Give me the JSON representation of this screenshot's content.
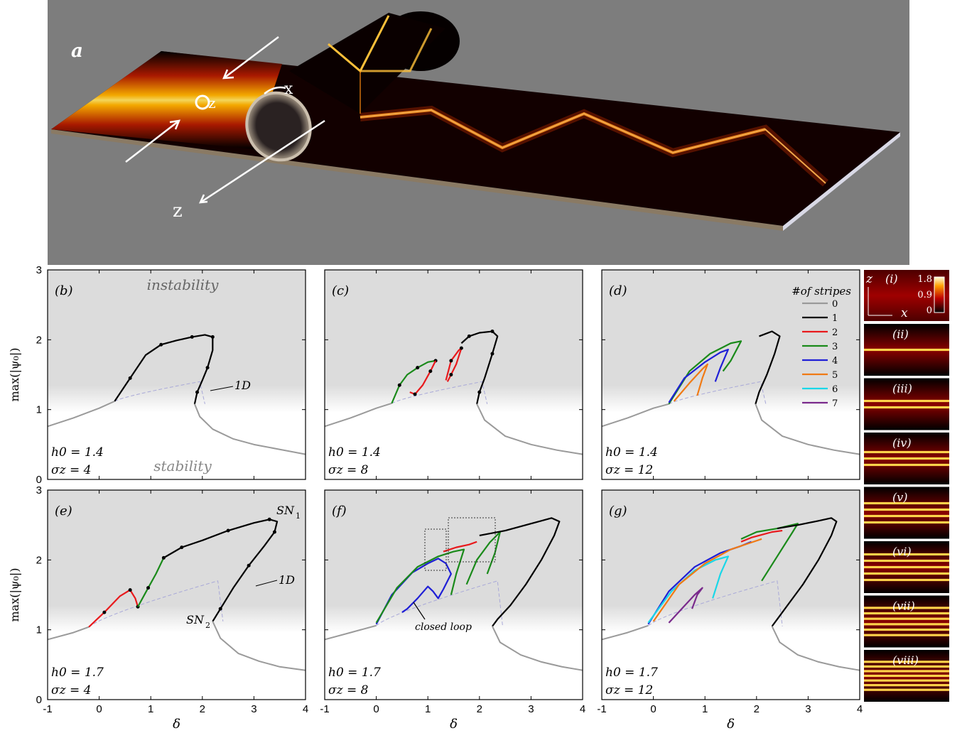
{
  "panel_a": {
    "label": "a",
    "axis_labels": [
      "z",
      "x",
      "z"
    ]
  },
  "figure": {
    "y_axis_label": "max(|ψ₀|)",
    "x_axis_label": "δ",
    "yticks": [
      "0",
      "1",
      "2",
      "3"
    ],
    "xticks": [
      "-1",
      "0",
      "1",
      "2",
      "3",
      "4"
    ],
    "region_labels": {
      "instability": "instability",
      "stability": "stability"
    },
    "annotation_1d": "1D",
    "annotation_sn1": "SN",
    "annotation_sn1_sub": "1",
    "annotation_sn2": "SN",
    "annotation_sn2_sub": "2",
    "annotation_loop": "closed loop",
    "legend": {
      "title": "#of stripes",
      "entries": [
        {
          "label": "0",
          "color": "#9a9a9a"
        },
        {
          "label": "1",
          "color": "#000000"
        },
        {
          "label": "2",
          "color": "#e8191c"
        },
        {
          "label": "3",
          "color": "#1a8a1a"
        },
        {
          "label": "4",
          "color": "#1f1fd6"
        },
        {
          "label": "5",
          "color": "#f07a14"
        },
        {
          "label": "6",
          "color": "#19d7e8"
        },
        {
          "label": "7",
          "color": "#7a2a8c"
        }
      ]
    },
    "strip": {
      "colorbar_ticks": [
        "1.8",
        "0.9",
        "0"
      ],
      "axis_z": "z",
      "axis_x": "x",
      "labels": [
        "(i)",
        "(ii)",
        "(iii)",
        "(iv)",
        "(v)",
        "(vi)",
        "(vii)",
        "(viii)"
      ]
    }
  },
  "chart_data": [
    {
      "panel": "(b)",
      "type": "line",
      "h0": "h0 = 1.4",
      "sigma": "σz = 4",
      "xlim": [
        -1,
        4
      ],
      "ylim": [
        0,
        3
      ],
      "series": [
        {
          "stripes": 0,
          "x": [
            -1,
            -0.5,
            0,
            0.3
          ],
          "y": [
            0.76,
            0.88,
            1.02,
            1.12
          ]
        },
        {
          "stripes": 1,
          "x": [
            0.3,
            0.6,
            0.9,
            1.2,
            1.5,
            1.8,
            2.05,
            2.2,
            2.2,
            2.1,
            2.0,
            1.9,
            1.85
          ],
          "y": [
            1.12,
            1.45,
            1.78,
            1.93,
            1.99,
            2.04,
            2.07,
            2.04,
            1.85,
            1.6,
            1.42,
            1.25,
            1.08
          ]
        },
        {
          "stripes": 0,
          "x": [
            1.85,
            1.95,
            2.2,
            2.6,
            3.0,
            3.5,
            4.0
          ],
          "y": [
            1.08,
            0.9,
            0.72,
            0.58,
            0.5,
            0.43,
            0.36
          ]
        }
      ]
    },
    {
      "panel": "(c)",
      "type": "line",
      "h0": "h0 = 1.4",
      "sigma": "σz = 8",
      "xlim": [
        -1,
        4
      ],
      "ylim": [
        0,
        3
      ],
      "series": [
        {
          "stripes": 0,
          "x": [
            -1,
            -0.5,
            0,
            0.3
          ],
          "y": [
            0.76,
            0.88,
            1.02,
            1.09
          ]
        },
        {
          "stripes": 3,
          "x": [
            0.3,
            0.45,
            0.6,
            0.8,
            1.0,
            1.15
          ],
          "y": [
            1.09,
            1.35,
            1.5,
            1.6,
            1.68,
            1.7
          ]
        },
        {
          "stripes": 2,
          "x": [
            1.15,
            1.05,
            0.9,
            0.75,
            0.65
          ],
          "y": [
            1.7,
            1.55,
            1.35,
            1.22,
            1.25
          ]
        },
        {
          "stripes": 2,
          "x": [
            1.35,
            1.45,
            1.6,
            1.65,
            1.55,
            1.45,
            1.38
          ],
          "y": [
            1.42,
            1.7,
            1.85,
            1.88,
            1.65,
            1.5,
            1.4
          ]
        },
        {
          "stripes": 1,
          "x": [
            1.65,
            1.8,
            2.0,
            2.25,
            2.35,
            2.25,
            2.1,
            2.0,
            1.95
          ],
          "y": [
            1.95,
            2.05,
            2.1,
            2.12,
            2.05,
            1.8,
            1.45,
            1.25,
            1.08
          ]
        },
        {
          "stripes": 0,
          "x": [
            1.95,
            2.1,
            2.5,
            3.0,
            3.5,
            4.0
          ],
          "y": [
            1.08,
            0.85,
            0.62,
            0.5,
            0.42,
            0.36
          ]
        }
      ]
    },
    {
      "panel": "(d)",
      "type": "line",
      "h0": "h0 = 1.4",
      "sigma": "σz = 12",
      "xlim": [
        -1,
        4
      ],
      "ylim": [
        0,
        3
      ],
      "series": [
        {
          "stripes": 0,
          "x": [
            -1,
            -0.5,
            0,
            0.3
          ],
          "y": [
            0.76,
            0.88,
            1.02,
            1.08
          ]
        },
        {
          "stripes": 3,
          "x": [
            0.3,
            0.7,
            1.1,
            1.5,
            1.7,
            1.5,
            1.35
          ],
          "y": [
            1.08,
            1.55,
            1.8,
            1.95,
            1.98,
            1.7,
            1.55
          ]
        },
        {
          "stripes": 4,
          "x": [
            0.3,
            0.6,
            1.0,
            1.3,
            1.45,
            1.3,
            1.2
          ],
          "y": [
            1.1,
            1.45,
            1.68,
            1.82,
            1.86,
            1.6,
            1.4
          ]
        },
        {
          "stripes": 5,
          "x": [
            0.4,
            0.7,
            0.95,
            1.05,
            0.95,
            0.85
          ],
          "y": [
            1.12,
            1.38,
            1.58,
            1.65,
            1.45,
            1.2
          ]
        },
        {
          "stripes": 1,
          "x": [
            2.05,
            2.3,
            2.45,
            2.35,
            2.2,
            2.05,
            1.98
          ],
          "y": [
            2.05,
            2.12,
            2.05,
            1.8,
            1.5,
            1.25,
            1.08
          ]
        },
        {
          "stripes": 0,
          "x": [
            1.98,
            2.1,
            2.5,
            3.0,
            3.5,
            4.0
          ],
          "y": [
            1.08,
            0.85,
            0.62,
            0.5,
            0.42,
            0.36
          ]
        }
      ]
    },
    {
      "panel": "(e)",
      "type": "line",
      "h0": "h0 = 1.7",
      "sigma": "σz = 4",
      "xlim": [
        -1,
        4
      ],
      "ylim": [
        0,
        3
      ],
      "series": [
        {
          "stripes": 0,
          "x": [
            -1,
            -0.5,
            -0.2
          ],
          "y": [
            0.86,
            0.96,
            1.04
          ]
        },
        {
          "stripes": 2,
          "x": [
            -0.2,
            0.1,
            0.4,
            0.6,
            0.7,
            0.75
          ],
          "y": [
            1.04,
            1.25,
            1.48,
            1.57,
            1.45,
            1.33
          ]
        },
        {
          "stripes": 3,
          "x": [
            0.75,
            0.95,
            1.1,
            1.25
          ],
          "y": [
            1.33,
            1.6,
            1.8,
            2.03
          ]
        },
        {
          "stripes": 1,
          "x": [
            1.25,
            1.6,
            2.0,
            2.5,
            3.0,
            3.3,
            3.45,
            3.4,
            3.2,
            2.9,
            2.6,
            2.35,
            2.2
          ],
          "y": [
            2.03,
            2.18,
            2.28,
            2.42,
            2.53,
            2.58,
            2.55,
            2.4,
            2.2,
            1.92,
            1.6,
            1.3,
            1.12
          ]
        },
        {
          "stripes": 0,
          "x": [
            2.2,
            2.35,
            2.7,
            3.1,
            3.5,
            4.0
          ],
          "y": [
            1.12,
            0.88,
            0.66,
            0.55,
            0.47,
            0.42
          ]
        }
      ]
    },
    {
      "panel": "(f)",
      "type": "line",
      "h0": "h0 = 1.7",
      "sigma": "σz = 8",
      "xlim": [
        -1,
        4
      ],
      "ylim": [
        0,
        3
      ],
      "series": [
        {
          "stripes": 0,
          "x": [
            -1,
            -0.5,
            0.0
          ],
          "y": [
            0.86,
            0.96,
            1.06
          ]
        },
        {
          "stripes": 4,
          "x": [
            0.0,
            0.3,
            0.7,
            1.0,
            1.2,
            1.35,
            1.45,
            1.3,
            1.2,
            1.1,
            1.0,
            0.8,
            0.6,
            0.5
          ],
          "y": [
            1.08,
            1.5,
            1.82,
            1.95,
            2.02,
            1.95,
            1.8,
            1.58,
            1.45,
            1.55,
            1.62,
            1.45,
            1.3,
            1.25
          ]
        },
        {
          "stripes": 3,
          "x": [
            0.0,
            0.4,
            0.8,
            1.2,
            1.5,
            1.7,
            1.55,
            1.45
          ],
          "y": [
            1.1,
            1.6,
            1.9,
            2.05,
            2.12,
            2.15,
            1.8,
            1.5
          ]
        },
        {
          "stripes": 2,
          "x": [
            1.3,
            1.55,
            1.8,
            1.95
          ],
          "y": [
            2.12,
            2.18,
            2.22,
            2.26
          ]
        },
        {
          "stripes": 3,
          "x": [
            1.75,
            1.95,
            2.2,
            2.4,
            2.3,
            2.15
          ],
          "y": [
            1.65,
            2.0,
            2.25,
            2.4,
            2.1,
            1.8
          ]
        },
        {
          "stripes": 1,
          "x": [
            2.0,
            2.5,
            3.0,
            3.4,
            3.55,
            3.45,
            3.2,
            2.9,
            2.6,
            2.35,
            2.25
          ],
          "y": [
            2.35,
            2.42,
            2.52,
            2.6,
            2.55,
            2.35,
            2.0,
            1.65,
            1.35,
            1.15,
            1.05
          ]
        },
        {
          "stripes": 0,
          "x": [
            2.25,
            2.4,
            2.8,
            3.2,
            3.6,
            4.0
          ],
          "y": [
            1.05,
            0.82,
            0.64,
            0.54,
            0.47,
            0.42
          ]
        }
      ]
    },
    {
      "panel": "(g)",
      "type": "line",
      "h0": "h0 = 1.7",
      "sigma": "σz = 12",
      "xlim": [
        -1,
        4
      ],
      "ylim": [
        0,
        3
      ],
      "series": [
        {
          "stripes": 0,
          "x": [
            -1,
            -0.5,
            -0.1
          ],
          "y": [
            0.86,
            0.96,
            1.06
          ]
        },
        {
          "stripes": 4,
          "x": [
            -0.1,
            0.3,
            0.8,
            1.3,
            1.7,
            1.9
          ],
          "y": [
            1.08,
            1.55,
            1.9,
            2.1,
            2.2,
            2.26
          ]
        },
        {
          "stripes": 6,
          "x": [
            -0.1,
            0.35,
            0.8,
            1.2,
            1.45,
            1.3,
            1.15
          ],
          "y": [
            1.1,
            1.55,
            1.85,
            2.0,
            2.05,
            1.8,
            1.45
          ]
        },
        {
          "stripes": 7,
          "x": [
            0.3,
            0.55,
            0.8,
            0.95,
            0.85,
            0.75
          ],
          "y": [
            1.1,
            1.3,
            1.5,
            1.6,
            1.5,
            1.3
          ]
        },
        {
          "stripes": 5,
          "x": [
            0.0,
            0.5,
            1.0,
            1.5,
            1.9,
            2.1
          ],
          "y": [
            1.12,
            1.65,
            1.95,
            2.15,
            2.25,
            2.3
          ]
        },
        {
          "stripes": 3,
          "x": [
            1.7,
            2.0,
            2.4,
            2.8,
            2.7,
            2.4,
            2.1
          ],
          "y": [
            2.3,
            2.4,
            2.45,
            2.52,
            2.4,
            2.05,
            1.7
          ]
        },
        {
          "stripes": 2,
          "x": [
            1.7,
            1.9,
            2.1,
            2.3,
            2.5
          ],
          "y": [
            2.26,
            2.32,
            2.36,
            2.4,
            2.42
          ]
        },
        {
          "stripes": 1,
          "x": [
            2.4,
            2.8,
            3.2,
            3.45,
            3.55,
            3.45,
            3.2,
            2.9,
            2.6,
            2.4,
            2.3
          ],
          "y": [
            2.45,
            2.5,
            2.56,
            2.6,
            2.55,
            2.35,
            2.0,
            1.65,
            1.35,
            1.15,
            1.05
          ]
        },
        {
          "stripes": 0,
          "x": [
            2.3,
            2.45,
            2.8,
            3.2,
            3.6,
            4.0
          ],
          "y": [
            1.05,
            0.82,
            0.64,
            0.54,
            0.47,
            0.42
          ]
        }
      ]
    }
  ]
}
